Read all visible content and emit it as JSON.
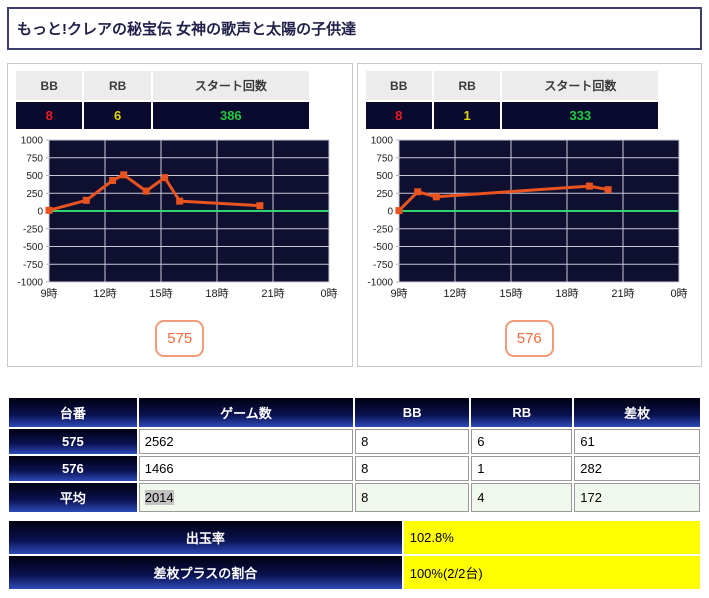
{
  "title": "もっと!クレアの秘宝伝 女神の歌声と太陽の子供達",
  "panel_labels": {
    "bb": "BB",
    "rb": "RB",
    "start": "スタート回数"
  },
  "machines": [
    {
      "machine_no": "575",
      "bb": "8",
      "rb": "6",
      "start": "386"
    },
    {
      "machine_no": "576",
      "bb": "8",
      "rb": "1",
      "start": "333"
    }
  ],
  "colors": {
    "plot_bg": "#0f0f30",
    "grid": "#c8c8d8",
    "zero_line": "#2fd36f",
    "series_orange": "#e8531f",
    "bb_red": "#ee1c25",
    "rb_yellow": "#e3d410",
    "start_green": "#22c93e",
    "yellow_cell": "#ffff00",
    "header_blue_gradient": [
      "#010110",
      "#2e4ab8"
    ]
  },
  "chart_data": [
    {
      "type": "line",
      "title": "台575 スランプグラフ",
      "xlim": [
        9,
        24
      ],
      "ylim": [
        -1000,
        1000
      ],
      "x_ticks": [
        "9時",
        "12時",
        "15時",
        "18時",
        "21時",
        "0時"
      ],
      "x_tick_hours": [
        9,
        12,
        15,
        18,
        21,
        24
      ],
      "y_ticks": [
        1000,
        750,
        500,
        250,
        0,
        -250,
        -500,
        -750,
        -1000
      ],
      "zero_line": true,
      "grid": true,
      "legend": "none",
      "series": [
        {
          "name": "差枚",
          "color": "#e8531f",
          "points": [
            [
              9,
              10
            ],
            [
              11,
              150
            ],
            [
              12.4,
              430
            ],
            [
              13,
              510
            ],
            [
              14.2,
              280
            ],
            [
              15.2,
              470
            ],
            [
              16,
              140
            ],
            [
              20.3,
              75
            ]
          ]
        }
      ]
    },
    {
      "type": "line",
      "title": "台576 スランプグラフ",
      "xlim": [
        9,
        24
      ],
      "ylim": [
        -1000,
        1000
      ],
      "x_ticks": [
        "9時",
        "12時",
        "15時",
        "18時",
        "21時",
        "0時"
      ],
      "x_tick_hours": [
        9,
        12,
        15,
        18,
        21,
        24
      ],
      "y_ticks": [
        1000,
        750,
        500,
        250,
        0,
        -250,
        -500,
        -750,
        -1000
      ],
      "zero_line": true,
      "grid": true,
      "legend": "none",
      "series": [
        {
          "name": "差枚",
          "color": "#e8531f",
          "points": [
            [
              9,
              5
            ],
            [
              10,
              270
            ],
            [
              11,
              200
            ],
            [
              19.2,
              350
            ],
            [
              20.2,
              300
            ]
          ]
        }
      ]
    }
  ],
  "results_table": {
    "headers": {
      "daiban": "台番",
      "games": "ゲーム数",
      "bb": "BB",
      "rb": "RB",
      "diff": "差枚"
    },
    "rows": [
      {
        "daiban": "575",
        "games": "2562",
        "bb": "8",
        "rb": "6",
        "diff": "61"
      },
      {
        "daiban": "576",
        "games": "1466",
        "bb": "8",
        "rb": "1",
        "diff": "282"
      },
      {
        "daiban": "平均",
        "games": "2014",
        "bb": "8",
        "rb": "4",
        "diff": "172"
      }
    ]
  },
  "totals": {
    "rows": [
      {
        "label": "出玉率",
        "value": "102.8%"
      },
      {
        "label": "差枚プラスの割合",
        "value": "100%(2/2台)"
      }
    ]
  }
}
